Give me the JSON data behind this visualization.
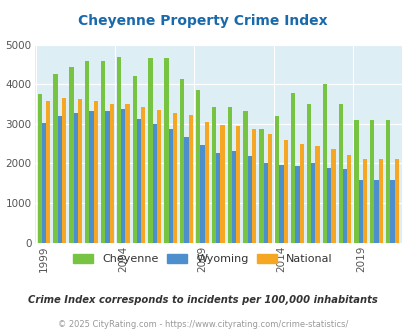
{
  "title": "Cheyenne Property Crime Index",
  "subtitle": "Crime Index corresponds to incidents per 100,000 inhabitants",
  "footer": "© 2025 CityRating.com - https://www.cityrating.com/crime-statistics/",
  "years": [
    1999,
    2000,
    2001,
    2002,
    2003,
    2004,
    2005,
    2006,
    2007,
    2008,
    2009,
    2010,
    2011,
    2012,
    2013,
    2014,
    2015,
    2016,
    2017,
    2018,
    2019,
    2020,
    2021
  ],
  "cheyenne": [
    3760,
    4250,
    4440,
    4580,
    4580,
    4680,
    4200,
    4650,
    4650,
    4130,
    3840,
    3420,
    3420,
    3330,
    2860,
    3200,
    3780,
    3490,
    4000,
    3490,
    3100,
    3100,
    3100
  ],
  "wyoming": [
    3020,
    3200,
    3280,
    3320,
    3320,
    3380,
    3120,
    3000,
    2880,
    2660,
    2470,
    2260,
    2300,
    2190,
    2000,
    1950,
    1940,
    2000,
    1870,
    1850,
    1580,
    1580,
    1580
  ],
  "national": [
    3580,
    3650,
    3620,
    3580,
    3490,
    3490,
    3430,
    3340,
    3260,
    3210,
    3050,
    2960,
    2940,
    2870,
    2740,
    2600,
    2490,
    2450,
    2360,
    2200,
    2110,
    2100,
    2100
  ],
  "cheyenne_color": "#76c442",
  "wyoming_color": "#4d8fcc",
  "national_color": "#f5a623",
  "bg_color": "#ddeef4",
  "title_color": "#1a6aab",
  "ylim": [
    0,
    5000
  ],
  "yticks": [
    0,
    1000,
    2000,
    3000,
    4000,
    5000
  ],
  "bar_width": 0.27,
  "legend_items": [
    "Cheyenne",
    "Wyoming",
    "National"
  ],
  "xtick_years": [
    1999,
    2004,
    2009,
    2014,
    2019
  ]
}
